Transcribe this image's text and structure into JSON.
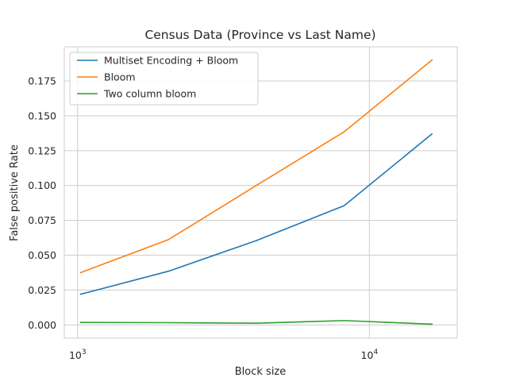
{
  "chart_data": {
    "type": "line",
    "title": "Census Data (Province vs Last Name)",
    "xlabel": "Block size",
    "ylabel": "False positive Rate",
    "xscale": "log",
    "xlim": [
      900,
      20000
    ],
    "ylim": [
      -0.0095,
      0.1995
    ],
    "x": [
      1024,
      2048,
      4096,
      8192,
      16384
    ],
    "x_ticks": [
      1000,
      10000
    ],
    "x_tick_labels": [
      {
        "base": "10",
        "exp": "3"
      },
      {
        "base": "10",
        "exp": "4"
      }
    ],
    "y_ticks": [
      "0.000",
      "0.025",
      "0.050",
      "0.075",
      "0.100",
      "0.125",
      "0.150",
      "0.175"
    ],
    "grid": true,
    "legend_position": "top-left",
    "series": [
      {
        "name": "Multiset Encoding + Bloom",
        "color": "#1f77b4",
        "values": [
          0.022,
          0.0385,
          0.0605,
          0.0855,
          0.137
        ]
      },
      {
        "name": "Bloom",
        "color": "#ff7f0e",
        "values": [
          0.0375,
          0.0612,
          0.1,
          0.1385,
          0.19
        ]
      },
      {
        "name": "Two column bloom",
        "color": "#2ca02c",
        "values": [
          0.0018,
          0.0016,
          0.0012,
          0.0031,
          0.0005
        ]
      }
    ]
  }
}
